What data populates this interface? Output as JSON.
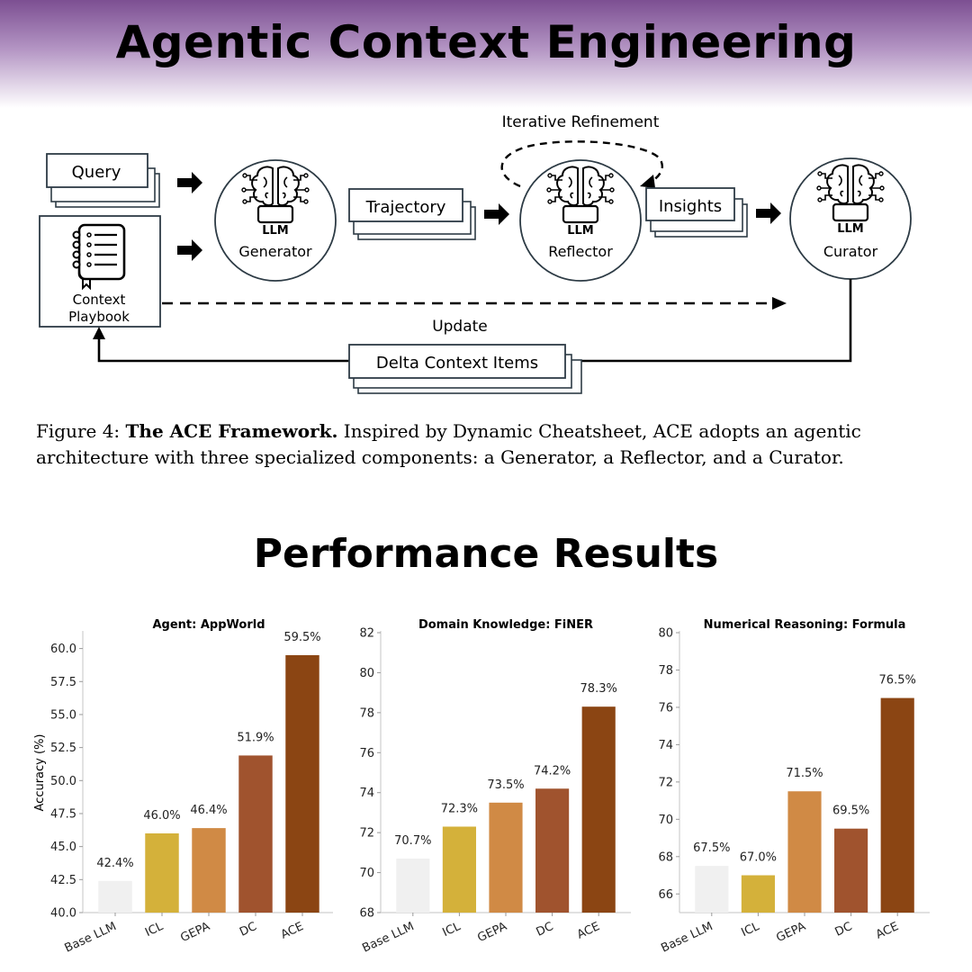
{
  "header": {
    "title": "Agentic Context Engineering"
  },
  "diagram": {
    "query": "Query",
    "playbook_line1": "Context",
    "playbook_line2": "Playbook",
    "llm_label": "LLM",
    "generator": "Generator",
    "trajectory": "Trajectory",
    "reflector": "Reflector",
    "iterative_refinement": "Iterative Refinement",
    "insights": "Insights",
    "curator": "Curator",
    "update": "Update",
    "delta_items": "Delta Context Items"
  },
  "caption": {
    "prefix": "Figure 4: ",
    "bold": "The ACE Framework.",
    "text": " Inspired by Dynamic Cheatsheet, ACE adopts an agentic architecture with three specialized components: a Generator, a Reflector, and a Curator."
  },
  "section": {
    "title": "Performance Results"
  },
  "chart_data": [
    {
      "type": "bar",
      "title": "Agent: AppWorld",
      "ylabel": "Accuracy (%)",
      "xlabel": "",
      "categories": [
        "Base LLM",
        "ICL",
        "GEPA",
        "DC",
        "ACE"
      ],
      "values": [
        42.4,
        46.0,
        46.4,
        51.9,
        59.5
      ],
      "labels": [
        "42.4%",
        "46.0%",
        "46.4%",
        "51.9%",
        "59.5%"
      ],
      "ylim": [
        40.0,
        61.2
      ],
      "yticks": [
        40.0,
        42.5,
        45.0,
        47.5,
        50.0,
        52.5,
        55.0,
        57.5,
        60.0
      ],
      "tick_decimals": 1,
      "colors": [
        "#f0f0f0",
        "#d4b13a",
        "#d08a45",
        "#a0532e",
        "#8b4513"
      ]
    },
    {
      "type": "bar",
      "title": "Domain Knowledge: FiNER",
      "ylabel": "",
      "xlabel": "",
      "categories": [
        "Base LLM",
        "ICL",
        "GEPA",
        "DC",
        "ACE"
      ],
      "values": [
        70.7,
        72.3,
        73.5,
        74.2,
        78.3
      ],
      "labels": [
        "70.7%",
        "72.3%",
        "73.5%",
        "74.2%",
        "78.3%"
      ],
      "ylim": [
        68,
        82
      ],
      "yticks": [
        68,
        70,
        72,
        74,
        76,
        78,
        80,
        82
      ],
      "tick_decimals": 0,
      "colors": [
        "#f0f0f0",
        "#d4b13a",
        "#d08a45",
        "#a0532e",
        "#8b4513"
      ]
    },
    {
      "type": "bar",
      "title": "Numerical Reasoning: Formula",
      "ylabel": "",
      "xlabel": "",
      "categories": [
        "Base LLM",
        "ICL",
        "GEPA",
        "DC",
        "ACE"
      ],
      "values": [
        67.5,
        67.0,
        71.5,
        69.5,
        76.5
      ],
      "labels": [
        "67.5%",
        "67.0%",
        "71.5%",
        "69.5%",
        "76.5%"
      ],
      "ylim": [
        65,
        80
      ],
      "yticks": [
        66,
        68,
        70,
        72,
        74,
        76,
        78,
        80
      ],
      "tick_decimals": 0,
      "colors": [
        "#f0f0f0",
        "#d4b13a",
        "#d08a45",
        "#a0532e",
        "#8b4513"
      ]
    }
  ]
}
